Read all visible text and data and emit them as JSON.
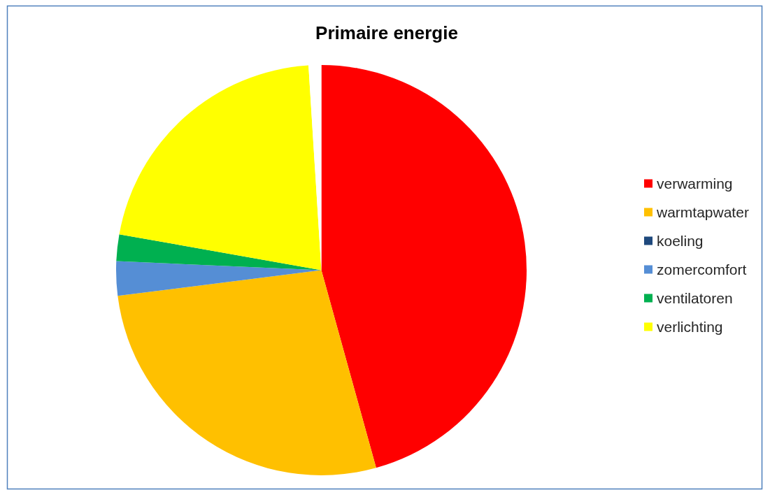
{
  "chart_data": {
    "type": "pie",
    "title": "Primaire energie",
    "categories": [
      "verwarming",
      "warmtapwater",
      "koeling",
      "zomercomfort",
      "ventilatoren",
      "verlichting",
      null
    ],
    "values": [
      45.7,
      27.3,
      0,
      2.7,
      2.1,
      21.2,
      1.0
    ],
    "colors": [
      "#ff0000",
      "#ffc000",
      "#1f497d",
      "#558ed5",
      "#00b050",
      "#ffff00",
      "#ffffff"
    ],
    "legend": "right"
  }
}
